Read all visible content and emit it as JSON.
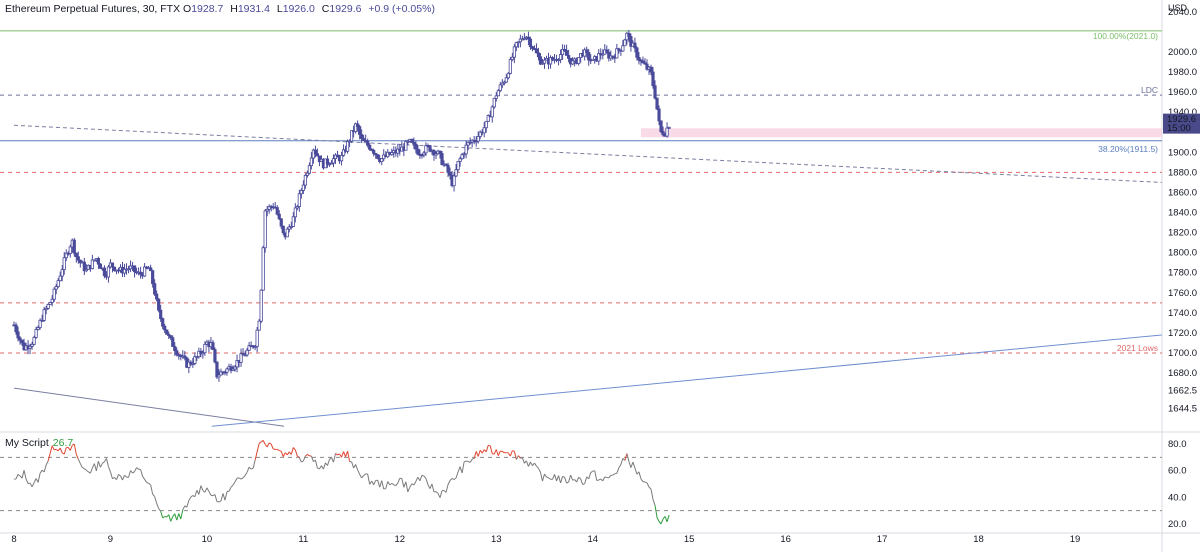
{
  "header": {
    "symbol": "Ethereum Perpetual Futures, 30, FTX",
    "open_label": "O",
    "open": "1928.7",
    "high_label": "H",
    "high": "1931.4",
    "low_label": "L",
    "low": "1926.0",
    "close_label": "C",
    "close": "1929.6",
    "change": "+0.9 (+0.05%)"
  },
  "axis_unit": "USD",
  "colors": {
    "candle": "#4a4a9a",
    "grid_dash": "#e06a6a",
    "fib_green": "#7bbf6a",
    "trendline": "#6f8fd0",
    "pink_zone": "#f8d3e3",
    "osc_normal": "#7a7a7a",
    "osc_overbought": "#e0442f",
    "osc_oversold": "#2e9c3b",
    "price_label_bg": "#4a4a8a"
  },
  "chart_data": [
    {
      "type": "candlestick",
      "title": "Ethereum Perpetual Futures, 30, FTX",
      "x_tick_labels": [
        "8",
        "9",
        "10",
        "11",
        "12",
        "13",
        "14",
        "15",
        "16",
        "17",
        "18",
        "19"
      ],
      "y_tick_labels": [
        "2040.0",
        "2000.0",
        "1980.0",
        "1960.0",
        "1940.0",
        "1900.0",
        "1880.0",
        "1860.0",
        "1840.0",
        "1820.0",
        "1800.0",
        "1780.0",
        "1760.0",
        "1740.0",
        "1720.0",
        "1700.0",
        "1680.0",
        "1662.5",
        "1644.5"
      ],
      "y_tick_values": [
        2040,
        2000,
        1980,
        1960,
        1940,
        1900,
        1880,
        1860,
        1840,
        1820,
        1800,
        1780,
        1760,
        1740,
        1720,
        1700,
        1680,
        1662.5,
        1644.5
      ],
      "ylim": [
        1625,
        2045
      ],
      "xlim": [
        8.0,
        19.9
      ],
      "price_path": [
        [
          8.0,
          1728
        ],
        [
          8.1,
          1705
        ],
        [
          8.2,
          1712
        ],
        [
          8.3,
          1738
        ],
        [
          8.4,
          1755
        ],
        [
          8.5,
          1785
        ],
        [
          8.55,
          1800
        ],
        [
          8.6,
          1812
        ],
        [
          8.65,
          1795
        ],
        [
          8.75,
          1782
        ],
        [
          8.85,
          1795
        ],
        [
          8.95,
          1778
        ],
        [
          9.0,
          1788
        ],
        [
          9.1,
          1782
        ],
        [
          9.2,
          1785
        ],
        [
          9.3,
          1778
        ],
        [
          9.4,
          1785
        ],
        [
          9.45,
          1765
        ],
        [
          9.5,
          1740
        ],
        [
          9.6,
          1716
        ],
        [
          9.7,
          1700
        ],
        [
          9.8,
          1688
        ],
        [
          9.9,
          1696
        ],
        [
          9.95,
          1702
        ],
        [
          10.0,
          1710
        ],
        [
          10.05,
          1708
        ],
        [
          10.1,
          1678
        ],
        [
          10.2,
          1683
        ],
        [
          10.3,
          1690
        ],
        [
          10.4,
          1700
        ],
        [
          10.5,
          1710
        ],
        [
          10.55,
          1740
        ],
        [
          10.6,
          1842
        ],
        [
          10.7,
          1848
        ],
        [
          10.8,
          1815
        ],
        [
          10.9,
          1835
        ],
        [
          11.0,
          1870
        ],
        [
          11.05,
          1885
        ],
        [
          11.1,
          1905
        ],
        [
          11.2,
          1888
        ],
        [
          11.3,
          1893
        ],
        [
          11.4,
          1895
        ],
        [
          11.5,
          1918
        ],
        [
          11.55,
          1928
        ],
        [
          11.6,
          1912
        ],
        [
          11.7,
          1905
        ],
        [
          11.8,
          1893
        ],
        [
          11.9,
          1898
        ],
        [
          12.0,
          1902
        ],
        [
          12.1,
          1910
        ],
        [
          12.2,
          1900
        ],
        [
          12.3,
          1905
        ],
        [
          12.4,
          1898
        ],
        [
          12.5,
          1880
        ],
        [
          12.55,
          1868
        ],
        [
          12.6,
          1888
        ],
        [
          12.7,
          1908
        ],
        [
          12.8,
          1915
        ],
        [
          12.9,
          1928
        ],
        [
          13.0,
          1958
        ],
        [
          13.1,
          1975
        ],
        [
          13.2,
          2005
        ],
        [
          13.3,
          2018
        ],
        [
          13.35,
          2010
        ],
        [
          13.45,
          1992
        ],
        [
          13.5,
          1990
        ],
        [
          13.6,
          1993
        ],
        [
          13.7,
          2000
        ],
        [
          13.8,
          1988
        ],
        [
          13.9,
          2000
        ],
        [
          14.0,
          1990
        ],
        [
          14.1,
          2000
        ],
        [
          14.2,
          1995
        ],
        [
          14.3,
          2005
        ],
        [
          14.35,
          2018
        ],
        [
          14.4,
          2008
        ],
        [
          14.5,
          1990
        ],
        [
          14.55,
          1985
        ],
        [
          14.6,
          1980
        ],
        [
          14.65,
          1955
        ],
        [
          14.7,
          1920
        ],
        [
          14.75,
          1920
        ],
        [
          14.8,
          1929.6
        ]
      ],
      "hlines": [
        {
          "value": 2021.0,
          "label": "100.00%(2021.0)",
          "style": "fib"
        },
        {
          "value": 1957,
          "label": "LDC",
          "style": "dash-blue"
        },
        {
          "value": 1911.5,
          "label": "38.20%(1911.5)",
          "style": "fib-blue"
        },
        {
          "value": 1880,
          "label": "",
          "style": "dash-red"
        },
        {
          "value": 1750,
          "label": "",
          "style": "dash-red"
        },
        {
          "value": 1700,
          "label": "2021 Lows",
          "style": "dash-red"
        }
      ],
      "zone": {
        "from_x": 14.5,
        "to_x": 19.9,
        "low": 1915,
        "high": 1924
      },
      "trendlines": [
        {
          "from": [
            8.0,
            1665
          ],
          "to": [
            10.8,
            1627
          ],
          "style": "solid-slate"
        },
        {
          "from": [
            10.05,
            1627
          ],
          "to": [
            19.9,
            1718
          ],
          "style": "solid-blue"
        },
        {
          "from": [
            8.0,
            1927
          ],
          "to": [
            19.9,
            1870
          ],
          "style": "dash-slate"
        }
      ],
      "last_price": {
        "value": "1929.6",
        "time": "15:00"
      }
    },
    {
      "type": "line",
      "title": "My Script",
      "last_value": "26.7",
      "y_tick_labels": [
        "80.0",
        "60.0",
        "40.0",
        "20.0"
      ],
      "y_tick_values": [
        80,
        60,
        40,
        20
      ],
      "ylim": [
        18,
        85
      ],
      "levels": [
        70,
        30
      ],
      "overbought": 70,
      "oversold": 30,
      "values_path": [
        [
          8.0,
          52
        ],
        [
          8.1,
          58
        ],
        [
          8.2,
          48
        ],
        [
          8.3,
          60
        ],
        [
          8.38,
          73
        ],
        [
          8.42,
          79
        ],
        [
          8.48,
          77
        ],
        [
          8.55,
          74
        ],
        [
          8.62,
          78
        ],
        [
          8.7,
          62
        ],
        [
          8.8,
          60
        ],
        [
          8.9,
          66
        ],
        [
          8.95,
          68
        ],
        [
          9.0,
          58
        ],
        [
          9.1,
          55
        ],
        [
          9.2,
          58
        ],
        [
          9.3,
          60
        ],
        [
          9.4,
          50
        ],
        [
          9.45,
          40
        ],
        [
          9.5,
          30
        ],
        [
          9.55,
          26
        ],
        [
          9.65,
          24
        ],
        [
          9.75,
          28
        ],
        [
          9.85,
          40
        ],
        [
          9.95,
          48
        ],
        [
          10.05,
          44
        ],
        [
          10.1,
          36
        ],
        [
          10.2,
          42
        ],
        [
          10.3,
          50
        ],
        [
          10.4,
          60
        ],
        [
          10.5,
          66
        ],
        [
          10.55,
          85
        ],
        [
          10.6,
          81
        ],
        [
          10.7,
          79
        ],
        [
          10.8,
          72
        ],
        [
          10.9,
          76
        ],
        [
          11.0,
          68
        ],
        [
          11.05,
          76
        ],
        [
          11.1,
          68
        ],
        [
          11.2,
          62
        ],
        [
          11.3,
          68
        ],
        [
          11.38,
          72
        ],
        [
          11.45,
          74
        ],
        [
          11.5,
          64
        ],
        [
          11.6,
          58
        ],
        [
          11.7,
          52
        ],
        [
          11.8,
          50
        ],
        [
          11.9,
          48
        ],
        [
          12.0,
          54
        ],
        [
          12.1,
          46
        ],
        [
          12.2,
          55
        ],
        [
          12.3,
          50
        ],
        [
          12.4,
          42
        ],
        [
          12.5,
          48
        ],
        [
          12.6,
          58
        ],
        [
          12.7,
          66
        ],
        [
          12.8,
          72
        ],
        [
          12.9,
          76
        ],
        [
          13.0,
          74
        ],
        [
          13.1,
          76
        ],
        [
          13.2,
          72
        ],
        [
          13.3,
          68
        ],
        [
          13.4,
          62
        ],
        [
          13.5,
          54
        ],
        [
          13.6,
          56
        ],
        [
          13.7,
          52
        ],
        [
          13.8,
          55
        ],
        [
          13.9,
          52
        ],
        [
          14.0,
          58
        ],
        [
          14.1,
          52
        ],
        [
          14.2,
          56
        ],
        [
          14.3,
          64
        ],
        [
          14.35,
          72
        ],
        [
          14.4,
          65
        ],
        [
          14.5,
          55
        ],
        [
          14.6,
          44
        ],
        [
          14.65,
          30
        ],
        [
          14.7,
          22
        ],
        [
          14.75,
          24
        ],
        [
          14.8,
          26.7
        ]
      ]
    }
  ]
}
